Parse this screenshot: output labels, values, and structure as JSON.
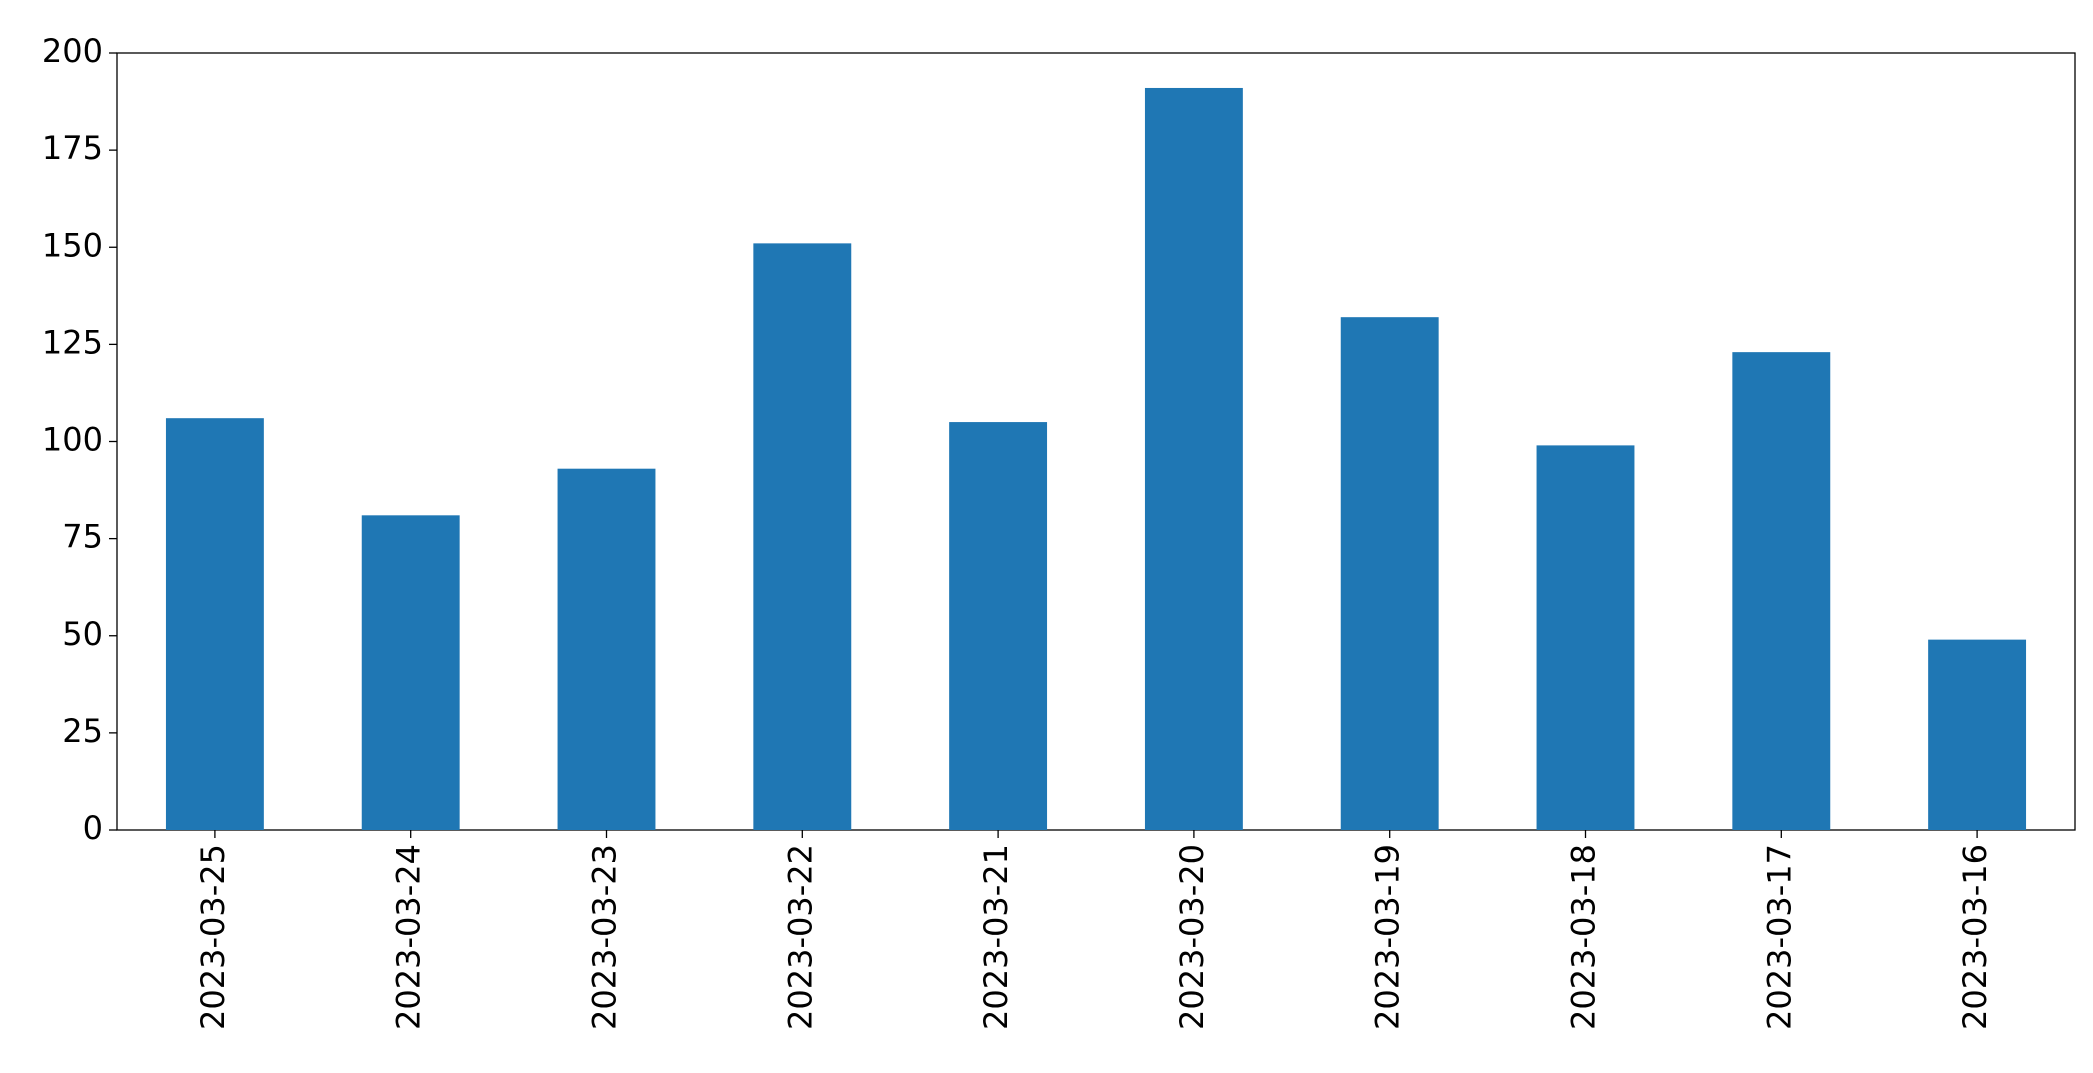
{
  "chart_data": {
    "type": "bar",
    "categories": [
      "2023-03-25",
      "2023-03-24",
      "2023-03-23",
      "2023-03-22",
      "2023-03-21",
      "2023-03-20",
      "2023-03-19",
      "2023-03-18",
      "2023-03-17",
      "2023-03-16"
    ],
    "values": [
      106,
      81,
      93,
      151,
      105,
      191,
      132,
      99,
      123,
      49
    ],
    "color": "#1f77b4",
    "ylim": [
      0,
      200
    ],
    "yticks": [
      0,
      25,
      50,
      75,
      100,
      125,
      150,
      175,
      200
    ],
    "grid": false
  }
}
